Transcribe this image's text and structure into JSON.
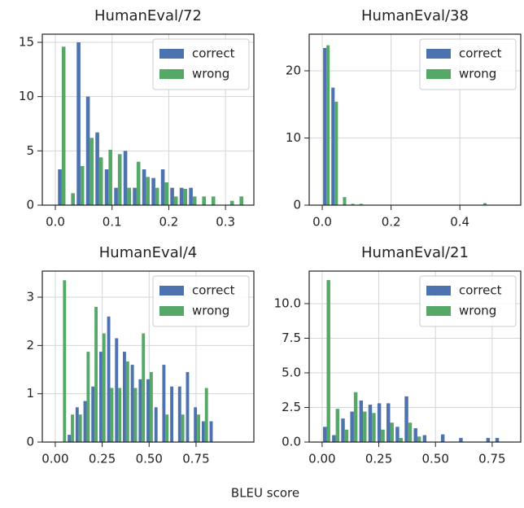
{
  "chart_data": [
    {
      "type": "histogram",
      "title": "HumanEval/72",
      "bins": [
        0.003,
        0.0195,
        0.036,
        0.0525,
        0.069,
        0.0855,
        0.102,
        0.1185,
        0.135,
        0.1515,
        0.168,
        0.1845,
        0.201,
        0.2175,
        0.234,
        0.2505,
        0.267,
        0.2835,
        0.3,
        0.3165,
        0.333
      ],
      "series": [
        {
          "name": "correct",
          "color": "#4c72b0",
          "values": [
            3.3,
            0,
            15,
            10,
            6.7,
            3.3,
            1.6,
            5,
            1.6,
            3.3,
            2.5,
            3.3,
            1.6,
            1.6,
            1.6,
            0,
            0,
            0,
            0,
            0
          ]
        },
        {
          "name": "wrong",
          "color": "#55a868",
          "values": [
            14.6,
            1.1,
            3.6,
            6.2,
            4.4,
            5.1,
            4.7,
            1.6,
            4.0,
            2.6,
            1.6,
            2.1,
            0.8,
            1.5,
            0.8,
            0.8,
            0.8,
            0,
            0.4,
            0.8
          ]
        }
      ],
      "xlim": [
        -0.023,
        0.35
      ],
      "ylim": [
        0,
        15.75
      ],
      "xticks": [
        {
          "value": 0,
          "label": "0.0"
        },
        {
          "value": 0.1,
          "label": "0.1"
        },
        {
          "value": 0.2,
          "label": "0.2"
        },
        {
          "value": 0.3,
          "label": "0.3"
        }
      ],
      "yticks": [
        0,
        5,
        10,
        15
      ],
      "grid": true,
      "legend": "upper right"
    },
    {
      "type": "histogram",
      "title": "HumanEval/38",
      "bins": [
        0,
        0.024,
        0.048,
        0.072,
        0.096,
        0.12,
        0.144,
        0.168,
        0.192,
        0.216,
        0.24,
        0.264,
        0.288,
        0.312,
        0.336,
        0.36,
        0.384,
        0.408,
        0.432,
        0.456,
        0.48
      ],
      "series": [
        {
          "name": "correct",
          "color": "#4c72b0",
          "values": [
            23.4,
            17.5,
            0,
            0,
            0,
            0,
            0,
            0,
            0,
            0,
            0,
            0,
            0,
            0,
            0,
            0,
            0,
            0,
            0,
            0
          ]
        },
        {
          "name": "wrong",
          "color": "#55a868",
          "values": [
            23.8,
            15.4,
            1.2,
            0.2,
            0.2,
            0,
            0,
            0,
            0,
            0,
            0,
            0,
            0,
            0,
            0,
            0,
            0,
            0,
            0,
            0.3
          ]
        }
      ],
      "xlim": [
        -0.038,
        0.577
      ],
      "ylim": [
        0,
        25.45
      ],
      "xticks": [
        {
          "value": 0,
          "label": "0.0"
        },
        {
          "value": 0.2,
          "label": "0.2"
        },
        {
          "value": 0.4,
          "label": "0.4"
        }
      ],
      "yticks": [
        0,
        10,
        20
      ],
      "grid": true,
      "legend": "upper right"
    },
    {
      "type": "histogram",
      "title": "HumanEval/4",
      "bins": [
        0.02,
        0.062,
        0.104,
        0.146,
        0.188,
        0.23,
        0.272,
        0.314,
        0.356,
        0.398,
        0.44,
        0.482,
        0.524,
        0.566,
        0.608,
        0.65,
        0.692,
        0.734,
        0.776,
        0.818,
        0.86
      ],
      "series": [
        {
          "name": "correct",
          "color": "#4c72b0",
          "values": [
            0,
            0.15,
            0.72,
            0.85,
            1.15,
            1.87,
            2.6,
            2.15,
            1.87,
            1.6,
            1.3,
            1.3,
            0.72,
            1.6,
            1.15,
            1.15,
            1.45,
            0.72,
            0.43,
            0.43
          ]
        },
        {
          "name": "wrong",
          "color": "#55a868",
          "values": [
            3.35,
            0.57,
            0.57,
            1.87,
            2.8,
            2.25,
            1.12,
            1.12,
            1.67,
            1.12,
            2.25,
            1.45,
            0,
            0.57,
            0,
            0.57,
            0,
            0.57,
            1.12,
            0
          ]
        }
      ],
      "xlim": [
        -0.069,
        1.058
      ],
      "ylim": [
        0,
        3.54
      ],
      "xticks": [
        {
          "value": 0,
          "label": "0.00"
        },
        {
          "value": 0.25,
          "label": "0.25"
        },
        {
          "value": 0.5,
          "label": "0.50"
        },
        {
          "value": 0.75,
          "label": "0.75"
        }
      ],
      "yticks": [
        0,
        1,
        2,
        3
      ],
      "grid": true,
      "legend": "upper right"
    },
    {
      "type": "histogram",
      "title": "HumanEval/21",
      "bins": [
        0,
        0.04,
        0.08,
        0.12,
        0.16,
        0.2,
        0.24,
        0.28,
        0.32,
        0.36,
        0.4,
        0.44,
        0.48,
        0.52,
        0.56,
        0.6,
        0.64,
        0.68,
        0.72,
        0.76,
        0.8
      ],
      "series": [
        {
          "name": "correct",
          "color": "#4c72b0",
          "values": [
            1.1,
            0.5,
            1.7,
            2.2,
            3.0,
            2.7,
            2.8,
            2.8,
            1.1,
            3.3,
            1.0,
            0.5,
            0,
            0.55,
            0,
            0.3,
            0,
            0,
            0.3,
            0.3
          ]
        },
        {
          "name": "wrong",
          "color": "#55a868",
          "values": [
            11.7,
            2.4,
            0.9,
            3.6,
            2.2,
            2.1,
            0.9,
            1.4,
            0.3,
            1.4,
            0.4,
            0,
            0,
            0,
            0,
            0,
            0,
            0,
            0,
            0
          ]
        }
      ],
      "xlim": [
        -0.057,
        0.876
      ],
      "ylim": [
        0,
        12.35
      ],
      "xticks": [
        {
          "value": 0,
          "label": "0.00"
        },
        {
          "value": 0.25,
          "label": "0.25"
        },
        {
          "value": 0.5,
          "label": "0.50"
        },
        {
          "value": 0.75,
          "label": "0.75"
        }
      ],
      "yticks": [
        {
          "value": 0,
          "label": "0.0"
        },
        {
          "value": 2.5,
          "label": "2.5"
        },
        {
          "value": 5,
          "label": "5.0"
        },
        {
          "value": 7.5,
          "label": "7.5"
        },
        {
          "value": 10,
          "label": "10.0"
        }
      ],
      "grid": true,
      "legend": "upper right"
    }
  ],
  "xlabel": "BLEU score"
}
